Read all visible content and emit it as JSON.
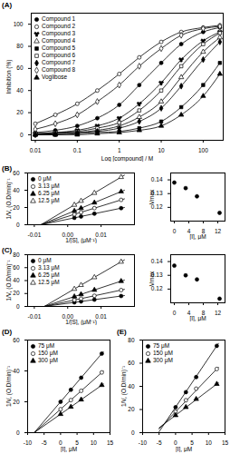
{
  "chart_data": [
    {
      "type": "line",
      "title": "(A)",
      "x_label": "Log [compound] / M",
      "y_label": "Inhibition (%)",
      "log": "x",
      "legend": "upper left",
      "grid": false,
      "xlim": [
        0.008,
        300
      ],
      "ylim": [
        -5,
        110
      ],
      "xticks": [
        0.01,
        0.1,
        1,
        10,
        100
      ],
      "yticks": [
        0,
        20,
        40,
        60,
        80,
        100
      ],
      "x": [
        0.01,
        0.03,
        0.1,
        0.3,
        1,
        3,
        10,
        30,
        100,
        250
      ],
      "series": [
        {
          "name": "Compound 1",
          "marker": "circle",
          "color": "#000000",
          "values": [
            2,
            4,
            8,
            15,
            27,
            45,
            65,
            82,
            93,
            97
          ]
        },
        {
          "name": "Compound 2",
          "marker": "circle-open",
          "color": "#000000",
          "values": [
            10,
            18,
            28,
            40,
            55,
            70,
            84,
            93,
            97,
            99
          ]
        },
        {
          "name": "Compound 3",
          "marker": "wye",
          "color": "#000000",
          "values": [
            1,
            2,
            4,
            8,
            15,
            28,
            47,
            68,
            85,
            93
          ]
        },
        {
          "name": "Compound 4",
          "marker": "triangle-open",
          "color": "#000000",
          "values": [
            0,
            1,
            2,
            4,
            8,
            16,
            30,
            52,
            75,
            88
          ]
        },
        {
          "name": "Compound 5",
          "marker": "square",
          "color": "#000000",
          "values": [
            0,
            0,
            1,
            2,
            3,
            6,
            12,
            25,
            45,
            65
          ]
        },
        {
          "name": "Compound 6",
          "marker": "square-open",
          "color": "#000000",
          "values": [
            1,
            2,
            3,
            6,
            11,
            22,
            40,
            62,
            82,
            92
          ]
        },
        {
          "name": "Compound 7",
          "marker": "diamond",
          "color": "#000000",
          "values": [
            0,
            1,
            2,
            3,
            6,
            12,
            24,
            44,
            68,
            84
          ]
        },
        {
          "name": "Compound 8",
          "marker": "diamond-open",
          "color": "#000000",
          "values": [
            5,
            10,
            18,
            30,
            45,
            62,
            78,
            90,
            96,
            98
          ]
        },
        {
          "name": "Voglibose",
          "marker": "triangle",
          "color": "#000000",
          "values": [
            0,
            0,
            0,
            1,
            2,
            4,
            8,
            18,
            35,
            55
          ]
        }
      ]
    },
    {
      "type": "scatter",
      "title": "(B)",
      "x_label": "1/[S], (μM⁻¹)",
      "y_label": "1/V, (O.D/min)⁻¹",
      "legend": "upper left",
      "grid": false,
      "xlim": [
        -0.012,
        0.02
      ],
      "ylim": [
        0,
        60
      ],
      "xticks": [
        -0.01,
        {
          "value": 0,
          "label": "0.00"
        },
        0.01
      ],
      "yticks": [
        0,
        20,
        40,
        60
      ],
      "x": [
        0.002,
        0.004,
        0.008,
        0.016
      ],
      "series": [
        {
          "name": "0 μM",
          "marker": "circle",
          "color": "#000000",
          "values": [
            8,
            9.6,
            12.8,
            19.2
          ],
          "fit": {
            "x": [
              -0.008,
              0.017
            ],
            "y": [
              0,
              20
            ]
          }
        },
        {
          "name": "3.13 μM",
          "marker": "circle-open",
          "color": "#000000",
          "values": [
            12,
            14.4,
            19.2,
            28.8
          ],
          "fit": {
            "x": [
              -0.008,
              0.017
            ],
            "y": [
              0,
              30
            ]
          }
        },
        {
          "name": "6.25 μM",
          "marker": "triangle",
          "color": "#000000",
          "values": [
            16,
            19.2,
            25.6,
            38.4
          ],
          "fit": {
            "x": [
              -0.008,
              0.017
            ],
            "y": [
              0,
              40
            ]
          }
        },
        {
          "name": "12.5 μM",
          "marker": "triangle-open",
          "color": "#000000",
          "values": [
            23,
            27.6,
            36.8,
            55.2
          ],
          "fit": {
            "x": [
              -0.008,
              0.017
            ],
            "y": [
              0,
              57.5
            ]
          }
        }
      ]
    },
    {
      "type": "scatter",
      "x_label": "[I], μM",
      "y_label": "Vmax",
      "grid": false,
      "xlim": [
        -1,
        14
      ],
      "ylim": [
        0.11,
        0.145
      ],
      "xticks": [
        0,
        4,
        8,
        12
      ],
      "yticks": [
        0.12,
        0.13,
        0.14
      ],
      "x": [
        0,
        3.13,
        6.25,
        12.5
      ],
      "series": [
        {
          "name": "Vmax",
          "marker": "circle",
          "color": "#000000",
          "values": [
            0.138,
            0.134,
            0.128,
            0.116
          ]
        }
      ]
    },
    {
      "type": "scatter",
      "title": "(C)",
      "x_label": "1/[S], (μM⁻¹)",
      "y_label": "1/V, (O.D/min)⁻¹",
      "legend": "upper left",
      "grid": false,
      "xlim": [
        -0.012,
        0.02
      ],
      "ylim": [
        0,
        80
      ],
      "xticks": [
        -0.01,
        {
          "value": 0,
          "label": "0.00"
        },
        0.01
      ],
      "yticks": [
        0,
        20,
        40,
        60,
        80
      ],
      "x": [
        0.002,
        0.004,
        0.008,
        0.016
      ],
      "series": [
        {
          "name": "0 μM",
          "marker": "circle",
          "color": "#000000",
          "values": [
            6.3,
            7.7,
            10.5,
            16.1
          ],
          "fit": {
            "x": [
              -0.007,
              0.017
            ],
            "y": [
              0,
              16.8
            ]
          }
        },
        {
          "name": "3.13 μM",
          "marker": "circle-open",
          "color": "#000000",
          "values": [
            9.9,
            12.1,
            16.5,
            25.3
          ],
          "fit": {
            "x": [
              -0.007,
              0.017
            ],
            "y": [
              0,
              26.4
            ]
          }
        },
        {
          "name": "6.25 μM",
          "marker": "triangle",
          "color": "#000000",
          "values": [
            15.3,
            18.7,
            25.5,
            39.1
          ],
          "fit": {
            "x": [
              -0.007,
              0.017
            ],
            "y": [
              0,
              40.8
            ]
          }
        },
        {
          "name": "12.5 μM",
          "marker": "triangle-open",
          "color": "#000000",
          "values": [
            27,
            33,
            45,
            69
          ],
          "fit": {
            "x": [
              -0.007,
              0.017
            ],
            "y": [
              0,
              72
            ]
          }
        }
      ]
    },
    {
      "type": "scatter",
      "x_label": "[I], μM",
      "y_label": "Vmax",
      "grid": false,
      "xlim": [
        -1,
        14
      ],
      "ylim": [
        0.11,
        0.145
      ],
      "xticks": [
        0,
        4,
        8,
        12
      ],
      "yticks": [
        0.12,
        0.13,
        0.14
      ],
      "x": [
        0,
        3.13,
        6.25,
        12.5
      ],
      "series": [
        {
          "name": "Vmax",
          "marker": "circle",
          "color": "#000000",
          "values": [
            0.137,
            0.13,
            0.127,
            0.113
          ]
        }
      ]
    },
    {
      "type": "scatter",
      "title": "(D)",
      "x_label": "[I], μM",
      "y_label": "1/V, (O.D/min)⁻¹",
      "legend": "upper left",
      "grid": false,
      "xlim": [
        -10,
        15
      ],
      "ylim": [
        0,
        60
      ],
      "xticks": [
        -10,
        -5,
        0,
        5,
        10,
        15
      ],
      "yticks": [
        0,
        20,
        40,
        60
      ],
      "x": [
        0,
        3.13,
        6.25,
        12.5
      ],
      "series": [
        {
          "name": "75 μM",
          "marker": "circle",
          "color": "#000000",
          "values": [
            20,
            27.8,
            35.6,
            51.2
          ],
          "fit": {
            "x": [
              -8,
              13
            ],
            "y": [
              0,
              52.5
            ]
          }
        },
        {
          "name": "150 μM",
          "marker": "circle-open",
          "color": "#000000",
          "values": [
            15.2,
            21.1,
            27.1,
            39
          ],
          "fit": {
            "x": [
              -8,
              13
            ],
            "y": [
              0,
              39.9
            ]
          }
        },
        {
          "name": "300 μM",
          "marker": "triangle",
          "color": "#000000",
          "values": [
            12,
            16.7,
            21.4,
            30.8
          ],
          "fit": {
            "x": [
              -8,
              13
            ],
            "y": [
              0,
              31.5
            ]
          }
        }
      ]
    },
    {
      "type": "scatter",
      "title": "(E)",
      "x_label": "[I], μM",
      "y_label": "1/V, (O.D/min)⁻¹",
      "legend": "upper left",
      "grid": false,
      "xlim": [
        -10,
        15
      ],
      "ylim": [
        0,
        80
      ],
      "xticks": [
        -10,
        -5,
        0,
        5,
        10,
        15
      ],
      "yticks": [
        0,
        20,
        40,
        60,
        80
      ],
      "x": [
        0,
        3.13,
        6.25,
        12.5
      ],
      "series": [
        {
          "name": "75 μM",
          "marker": "circle",
          "color": "#000000",
          "values": [
            22,
            35,
            48,
            75
          ],
          "fit": {
            "x": [
              -5,
              13
            ],
            "y": [
              0.8,
              77.1
            ]
          }
        },
        {
          "name": "150 μM",
          "marker": "circle-open",
          "color": "#000000",
          "values": [
            18,
            28,
            38,
            55
          ],
          "fit": {
            "x": [
              -5,
              13
            ],
            "y": [
              3.2,
              56.5
            ]
          }
        },
        {
          "name": "300 μM",
          "marker": "triangle",
          "color": "#000000",
          "values": [
            15,
            22,
            29,
            42
          ],
          "fit": {
            "x": [
              -5,
              13
            ],
            "y": [
              4.2,
              43.1
            ]
          }
        }
      ]
    }
  ]
}
